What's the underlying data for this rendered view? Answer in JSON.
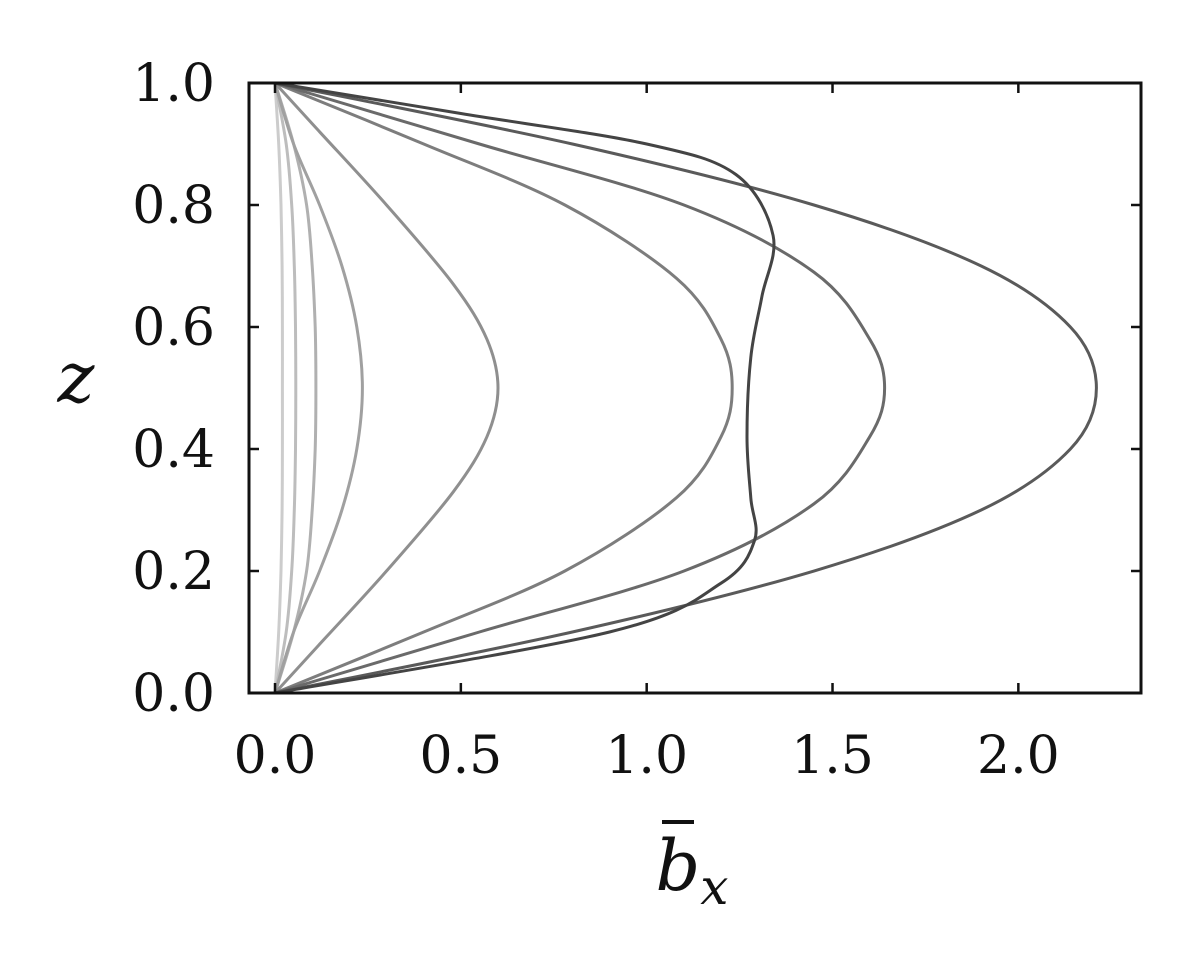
{
  "chart_data": {
    "type": "line",
    "title": "",
    "xlabel": "b",
    "xlabel_subscript": "x",
    "ylabel": "z",
    "xlim": [
      -0.07,
      2.33
    ],
    "ylim": [
      0.0,
      1.0
    ],
    "xticks": [
      "0.0",
      "0.5",
      "1.0",
      "1.5",
      "2.0"
    ],
    "yticks": [
      "0.0",
      "0.2",
      "0.4",
      "0.6",
      "0.8",
      "1.0"
    ],
    "grid": false,
    "legend": "none",
    "series": [
      {
        "color": "#cccccc",
        "points": [
          [
            0,
            0
          ],
          [
            0.01,
            0.1
          ],
          [
            0.016,
            0.2
          ],
          [
            0.019,
            0.3
          ],
          [
            0.02,
            0.4
          ],
          [
            0.02,
            0.5
          ],
          [
            0.02,
            0.6
          ],
          [
            0.019,
            0.7
          ],
          [
            0.016,
            0.8
          ],
          [
            0.01,
            0.9
          ],
          [
            0,
            1
          ]
        ]
      },
      {
        "color": "#bdbdbd",
        "points": [
          [
            0,
            0
          ],
          [
            0.03,
            0.1
          ],
          [
            0.045,
            0.2
          ],
          [
            0.052,
            0.3
          ],
          [
            0.055,
            0.4
          ],
          [
            0.056,
            0.5
          ],
          [
            0.055,
            0.6
          ],
          [
            0.052,
            0.7
          ],
          [
            0.045,
            0.8
          ],
          [
            0.03,
            0.9
          ],
          [
            0,
            1
          ]
        ]
      },
      {
        "color": "#b0b0b0",
        "points": [
          [
            0,
            0
          ],
          [
            0.05,
            0.1
          ],
          [
            0.085,
            0.2
          ],
          [
            0.1,
            0.3
          ],
          [
            0.108,
            0.4
          ],
          [
            0.11,
            0.5
          ],
          [
            0.108,
            0.6
          ],
          [
            0.1,
            0.7
          ],
          [
            0.085,
            0.8
          ],
          [
            0.05,
            0.9
          ],
          [
            0,
            1
          ]
        ]
      },
      {
        "color": "#a0a0a0",
        "points": [
          [
            0,
            0
          ],
          [
            0.05,
            0.1
          ],
          [
            0.12,
            0.2
          ],
          [
            0.18,
            0.3
          ],
          [
            0.22,
            0.4
          ],
          [
            0.235,
            0.5
          ],
          [
            0.22,
            0.6
          ],
          [
            0.18,
            0.7
          ],
          [
            0.12,
            0.8
          ],
          [
            0.05,
            0.9
          ],
          [
            0,
            1
          ]
        ]
      },
      {
        "color": "#8f8f8f",
        "points": [
          [
            0,
            0
          ],
          [
            0.12,
            0.08
          ],
          [
            0.3,
            0.2
          ],
          [
            0.48,
            0.33
          ],
          [
            0.57,
            0.42
          ],
          [
            0.6,
            0.5
          ],
          [
            0.57,
            0.58
          ],
          [
            0.48,
            0.67
          ],
          [
            0.3,
            0.8
          ],
          [
            0.12,
            0.92
          ],
          [
            0,
            1
          ]
        ]
      },
      {
        "color": "#7d7d7d",
        "points": [
          [
            0,
            0
          ],
          [
            0.4,
            0.1
          ],
          [
            0.78,
            0.2
          ],
          [
            1.08,
            0.32
          ],
          [
            1.2,
            0.42
          ],
          [
            1.23,
            0.5
          ],
          [
            1.2,
            0.58
          ],
          [
            1.08,
            0.68
          ],
          [
            0.78,
            0.8
          ],
          [
            0.4,
            0.9
          ],
          [
            0,
            1
          ]
        ]
      },
      {
        "color": "#6a6a6a",
        "points": [
          [
            0,
            0
          ],
          [
            0.55,
            0.1
          ],
          [
            1.1,
            0.2
          ],
          [
            1.45,
            0.31
          ],
          [
            1.6,
            0.42
          ],
          [
            1.64,
            0.5
          ],
          [
            1.6,
            0.58
          ],
          [
            1.45,
            0.69
          ],
          [
            1.1,
            0.8
          ],
          [
            0.55,
            0.9
          ],
          [
            0,
            1
          ]
        ]
      },
      {
        "color": "#5a5a5a",
        "points": [
          [
            0,
            0
          ],
          [
            0.8,
            0.1
          ],
          [
            1.45,
            0.2
          ],
          [
            1.9,
            0.3
          ],
          [
            2.14,
            0.4
          ],
          [
            2.21,
            0.5
          ],
          [
            2.14,
            0.6
          ],
          [
            1.9,
            0.7
          ],
          [
            1.45,
            0.8
          ],
          [
            0.8,
            0.9
          ],
          [
            0,
            1
          ]
        ]
      },
      {
        "color": "#444444",
        "points": [
          [
            0,
            0
          ],
          [
            0.9,
            0.1
          ],
          [
            1.2,
            0.18
          ],
          [
            1.29,
            0.25
          ],
          [
            1.28,
            0.32
          ],
          [
            1.27,
            0.42
          ],
          [
            1.28,
            0.55
          ],
          [
            1.31,
            0.65
          ],
          [
            1.34,
            0.75
          ],
          [
            1.24,
            0.85
          ],
          [
            1.0,
            0.9
          ],
          [
            0.5,
            0.95
          ],
          [
            0,
            1
          ]
        ]
      }
    ]
  }
}
